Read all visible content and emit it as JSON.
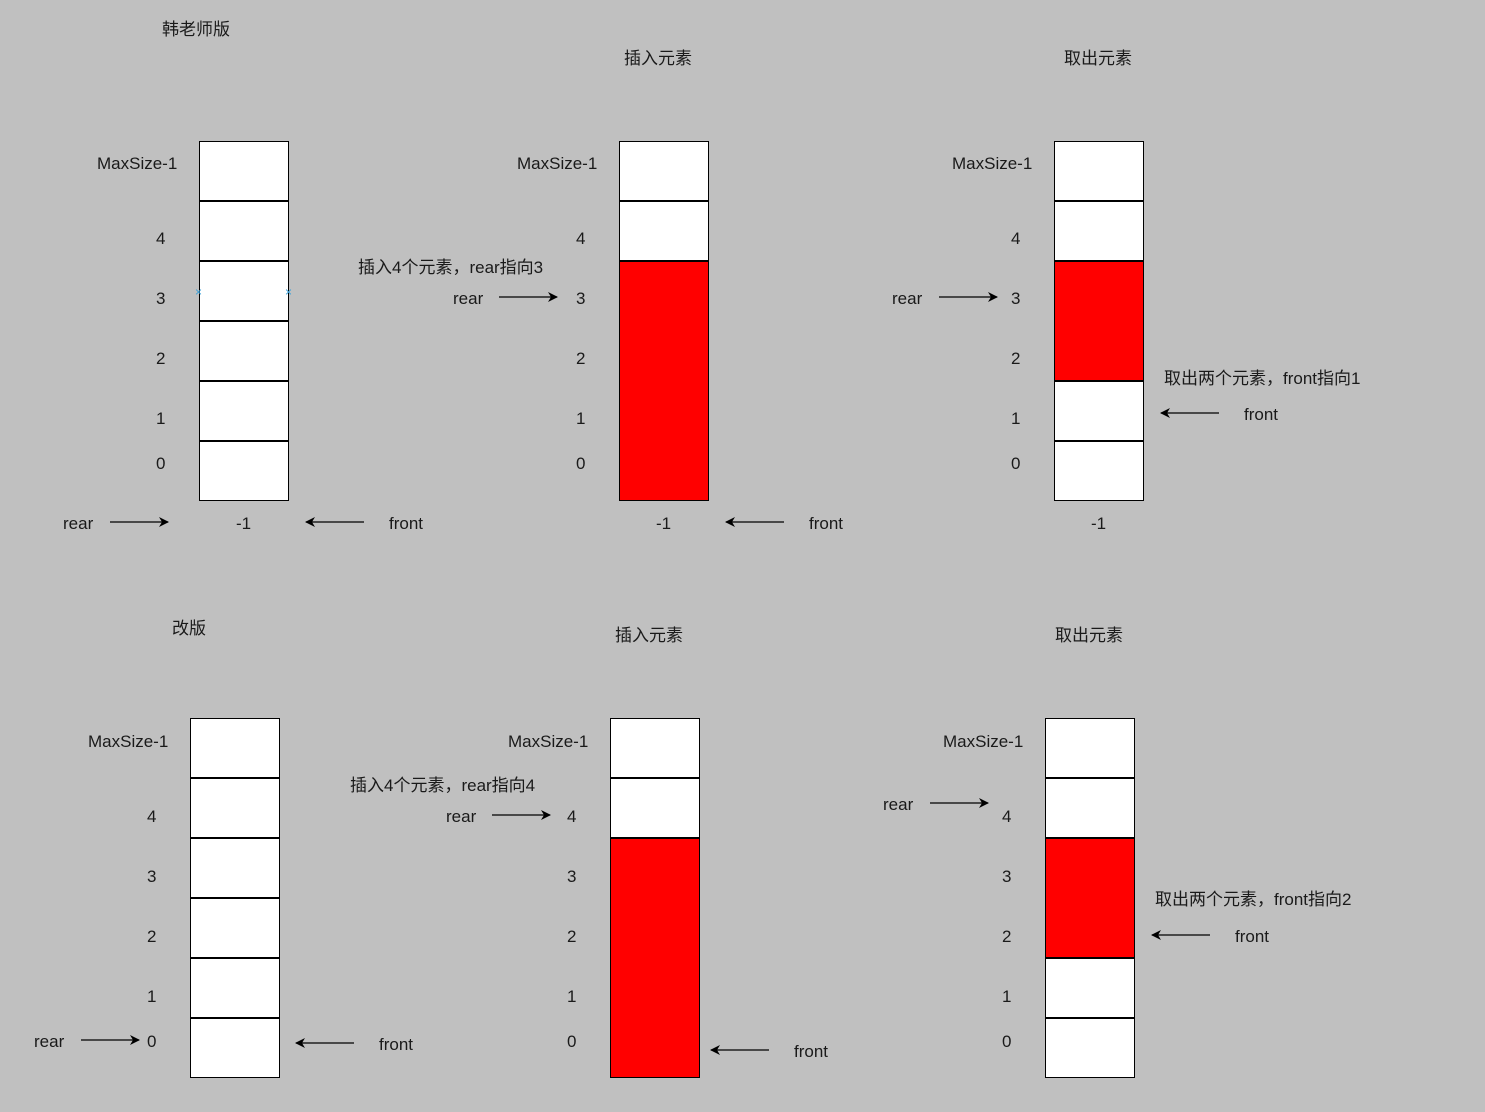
{
  "diagram": {
    "title_original": "韩老师版",
    "title_revised": "改版",
    "step_insert": "插入元素",
    "step_remove": "取出元素",
    "label_rear": "rear",
    "label_front": "front",
    "index_labels": [
      "MaxSize-1",
      "4",
      "3",
      "2",
      "1",
      "0"
    ],
    "index_minus_one": "-1",
    "note_insert_original": "插入4个元素，rear指向3",
    "note_remove_original": "取出两个元素，front指向1",
    "note_insert_revised": "插入4个元素，rear指向4",
    "note_remove_revised": "取出两个元素，front指向2",
    "colors": {
      "background": "#c0c0c0",
      "filled_cell": "#ff0000",
      "empty_cell": "#ffffff"
    }
  }
}
